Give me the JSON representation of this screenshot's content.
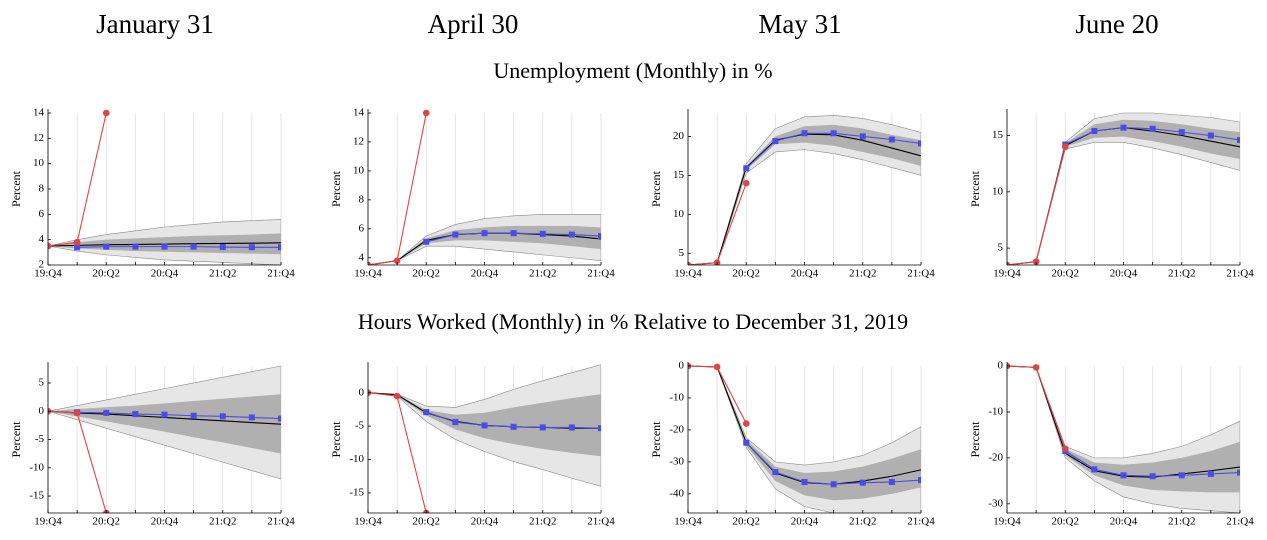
{
  "column_titles": [
    "January 31",
    "April 30",
    "May 31",
    "June 20"
  ],
  "row_titles": [
    "Unemployment (Monthly) in %",
    "Hours Worked (Monthly) in % Relative to December 31, 2019"
  ],
  "chart_data": [
    {
      "type": "line",
      "ylabel": "Percent",
      "categories": [
        "19:Q4",
        null,
        "20:Q2",
        null,
        "20:Q4",
        null,
        "21:Q2",
        null,
        "21:Q4"
      ],
      "ylim": [
        2,
        14
      ],
      "yticks": [
        2,
        4,
        6,
        8,
        10,
        12,
        14
      ],
      "grid": true,
      "bands": [
        {
          "color": "#e6e6e6",
          "low": [
            3.5,
            3.1,
            2.8,
            2.6,
            2.4,
            2.3,
            2.2,
            2.1,
            2.0
          ],
          "high": [
            3.5,
            4.0,
            4.4,
            4.7,
            5.0,
            5.2,
            5.4,
            5.5,
            5.6
          ]
        },
        {
          "color": "#b0b0b0",
          "low": [
            3.5,
            3.3,
            3.2,
            3.1,
            3.05,
            3.0,
            2.95,
            2.9,
            2.85
          ],
          "high": [
            3.5,
            3.8,
            4.0,
            4.1,
            4.2,
            4.3,
            4.35,
            4.4,
            4.5
          ]
        }
      ],
      "series": [
        {
          "color": "#000000",
          "values": [
            3.5,
            3.55,
            3.6,
            3.62,
            3.65,
            3.68,
            3.7,
            3.72,
            3.75
          ]
        },
        {
          "color": "#4b4be6",
          "marker": "square",
          "values": [
            null,
            3.4,
            3.45,
            3.45,
            3.45,
            3.45,
            3.42,
            3.4,
            3.4
          ]
        },
        {
          "color": "#e04545",
          "marker": "circle",
          "values": [
            3.5,
            3.8,
            14,
            null,
            null,
            null,
            null,
            null,
            null
          ]
        }
      ]
    },
    {
      "type": "line",
      "ylabel": "Percent",
      "categories": [
        "19:Q4",
        null,
        "20:Q2",
        null,
        "20:Q4",
        null,
        "21:Q2",
        null,
        "21:Q4"
      ],
      "ylim": [
        3.5,
        14
      ],
      "yticks": [
        4,
        6,
        8,
        10,
        12,
        14
      ],
      "grid": true,
      "bands": [
        {
          "color": "#e6e6e6",
          "low": [
            3.5,
            3.8,
            4.8,
            4.8,
            4.6,
            4.4,
            4.2,
            4.0,
            3.8
          ],
          "high": [
            3.5,
            3.8,
            5.5,
            6.3,
            6.7,
            6.9,
            7.0,
            7.0,
            7.0
          ]
        },
        {
          "color": "#b0b0b0",
          "low": [
            3.5,
            3.8,
            5.0,
            5.2,
            5.2,
            5.1,
            5.0,
            4.8,
            4.6
          ],
          "high": [
            3.5,
            3.8,
            5.35,
            5.9,
            6.1,
            6.2,
            6.2,
            6.2,
            6.1
          ]
        }
      ],
      "series": [
        {
          "color": "#000000",
          "values": [
            3.5,
            3.8,
            5.2,
            5.6,
            5.7,
            5.7,
            5.6,
            5.5,
            5.3
          ]
        },
        {
          "color": "#4b4be6",
          "marker": "square",
          "values": [
            null,
            null,
            5.1,
            5.6,
            5.7,
            5.7,
            5.65,
            5.6,
            5.5
          ]
        },
        {
          "color": "#e04545",
          "marker": "circle",
          "values": [
            3.5,
            3.8,
            14,
            null,
            null,
            null,
            null,
            null,
            null
          ]
        }
      ]
    },
    {
      "type": "line",
      "ylabel": "Percent",
      "categories": [
        "19:Q4",
        null,
        "20:Q2",
        null,
        "20:Q4",
        null,
        "21:Q2",
        null,
        "21:Q4"
      ],
      "ylim": [
        3.5,
        23
      ],
      "yticks": [
        5,
        10,
        15,
        20
      ],
      "grid": true,
      "bands": [
        {
          "color": "#e6e6e6",
          "low": [
            3.5,
            3.8,
            15.3,
            18,
            18.3,
            17.8,
            17,
            16,
            15
          ],
          "high": [
            3.5,
            3.8,
            16.5,
            21,
            22.5,
            22.7,
            22.3,
            21.5,
            20.5
          ]
        },
        {
          "color": "#b0b0b0",
          "low": [
            3.5,
            3.8,
            15.7,
            19,
            19.2,
            18.8,
            18,
            17.2,
            16.2
          ],
          "high": [
            3.5,
            3.8,
            16.2,
            20,
            21.3,
            21.5,
            21,
            20.2,
            19.5
          ]
        }
      ],
      "series": [
        {
          "color": "#000000",
          "values": [
            3.5,
            3.8,
            16,
            19.5,
            20.3,
            20.2,
            19.5,
            18.5,
            17.5
          ]
        },
        {
          "color": "#4b4be6",
          "marker": "square",
          "values": [
            null,
            null,
            15.9,
            19.4,
            20.4,
            20.4,
            20.0,
            19.6,
            19.1
          ]
        },
        {
          "color": "#e04545",
          "marker": "circle",
          "values": [
            3.5,
            3.8,
            14,
            null,
            null,
            null,
            null,
            null,
            null
          ]
        }
      ]
    },
    {
      "type": "line",
      "ylabel": "Percent",
      "categories": [
        "19:Q4",
        null,
        "20:Q2",
        null,
        "20:Q4",
        null,
        "21:Q2",
        null,
        "21:Q4"
      ],
      "ylim": [
        3.5,
        17
      ],
      "yticks": [
        5,
        10,
        15
      ],
      "grid": true,
      "bands": [
        {
          "color": "#e6e6e6",
          "low": [
            3.5,
            3.8,
            13.8,
            14.4,
            14.4,
            13.9,
            13.3,
            12.6,
            11.9
          ],
          "high": [
            3.5,
            3.8,
            14.4,
            16.5,
            17,
            17,
            16.8,
            16.6,
            16.2
          ]
        },
        {
          "color": "#b0b0b0",
          "low": [
            3.5,
            3.8,
            14,
            14.8,
            14.9,
            14.5,
            14,
            13.4,
            12.9
          ],
          "high": [
            3.5,
            3.8,
            14.3,
            16,
            16.4,
            16.3,
            16,
            15.6,
            15.3
          ]
        }
      ],
      "series": [
        {
          "color": "#000000",
          "values": [
            3.5,
            3.8,
            14.1,
            15.4,
            15.7,
            15.4,
            15.0,
            14.5,
            14.0
          ]
        },
        {
          "color": "#4b4be6",
          "marker": "square",
          "values": [
            null,
            null,
            14.2,
            15.4,
            15.7,
            15.6,
            15.3,
            15.0,
            14.6
          ]
        },
        {
          "color": "#e04545",
          "marker": "circle",
          "values": [
            3.5,
            3.8,
            14,
            null,
            null,
            null,
            null,
            null,
            null
          ]
        }
      ]
    },
    {
      "type": "line",
      "ylabel": "Percent",
      "categories": [
        "19:Q4",
        null,
        "20:Q2",
        null,
        "20:Q4",
        null,
        "21:Q2",
        null,
        "21:Q4"
      ],
      "ylim": [
        -18,
        8
      ],
      "yticks": [
        -15,
        -10,
        -5,
        0,
        5
      ],
      "grid": true,
      "bands": [
        {
          "color": "#e6e6e6",
          "low": [
            0,
            -1.5,
            -3,
            -4.5,
            -6,
            -7.5,
            -9,
            -10.5,
            -12
          ],
          "high": [
            0,
            1,
            2,
            3,
            4,
            5,
            6,
            7,
            8
          ]
        },
        {
          "color": "#b0b0b0",
          "low": [
            0,
            -0.9,
            -1.8,
            -2.7,
            -3.6,
            -4.6,
            -5.5,
            -6.5,
            -7.5
          ],
          "high": [
            0,
            0.4,
            0.7,
            1,
            1.4,
            1.8,
            2.2,
            2.6,
            3
          ]
        }
      ],
      "series": [
        {
          "color": "#000000",
          "values": [
            0,
            -0.3,
            -0.5,
            -0.8,
            -1.1,
            -1.4,
            -1.7,
            -2.0,
            -2.3
          ]
        },
        {
          "color": "#4b4be6",
          "marker": "square",
          "values": [
            null,
            -0.2,
            -0.3,
            -0.5,
            -0.6,
            -0.8,
            -0.9,
            -1.1,
            -1.3
          ]
        },
        {
          "color": "#e04545",
          "marker": "circle",
          "values": [
            0,
            -0.3,
            -18,
            null,
            null,
            null,
            null,
            null,
            null
          ]
        }
      ]
    },
    {
      "type": "line",
      "ylabel": "Percent",
      "categories": [
        "19:Q4",
        null,
        "20:Q2",
        null,
        "20:Q4",
        null,
        "21:Q2",
        null,
        "21:Q4"
      ],
      "ylim": [
        -18,
        4
      ],
      "yticks": [
        -15,
        -10,
        -5,
        0
      ],
      "grid": true,
      "bands": [
        {
          "color": "#e6e6e6",
          "low": [
            0,
            -0.5,
            -4.3,
            -7,
            -8.8,
            -10.3,
            -11.5,
            -12.8,
            -14
          ],
          "high": [
            0,
            -0.2,
            -2,
            -2.2,
            -1,
            0.5,
            1.8,
            3,
            4.2
          ]
        },
        {
          "color": "#b0b0b0",
          "low": [
            0,
            -0.5,
            -3.4,
            -5.5,
            -6.8,
            -7.7,
            -8.4,
            -9,
            -9.5
          ],
          "high": [
            0,
            -0.2,
            -2.6,
            -3.3,
            -3,
            -2.2,
            -1.5,
            -0.8,
            -0.2
          ]
        }
      ],
      "series": [
        {
          "color": "#000000",
          "values": [
            0,
            -0.3,
            -3,
            -4.3,
            -4.9,
            -5.1,
            -5.2,
            -5.3,
            -5.3
          ]
        },
        {
          "color": "#4b4be6",
          "marker": "square",
          "values": [
            null,
            null,
            -2.9,
            -4.4,
            -4.9,
            -5.1,
            -5.2,
            -5.2,
            -5.3
          ]
        },
        {
          "color": "#e04545",
          "marker": "circle",
          "values": [
            0,
            -0.5,
            -18,
            null,
            null,
            null,
            null,
            null,
            null
          ]
        }
      ]
    },
    {
      "type": "line",
      "ylabel": "Percent",
      "categories": [
        "19:Q4",
        null,
        "20:Q2",
        null,
        "20:Q4",
        null,
        "21:Q2",
        null,
        "21:Q4"
      ],
      "ylim": [
        -46,
        0
      ],
      "yticks": [
        -40,
        -30,
        -20,
        -10,
        0
      ],
      "grid": true,
      "bands": [
        {
          "color": "#e6e6e6",
          "low": [
            0,
            -0.3,
            -25.5,
            -38.5,
            -44,
            -46,
            -47,
            -48,
            -48
          ],
          "high": [
            0,
            -0.3,
            -22.5,
            -30,
            -31,
            -30,
            -28,
            -24,
            -19
          ]
        },
        {
          "color": "#b0b0b0",
          "low": [
            0,
            -0.3,
            -25,
            -36,
            -40.5,
            -42,
            -41.5,
            -40,
            -38
          ],
          "high": [
            0,
            -0.3,
            -23,
            -31.5,
            -33.5,
            -33,
            -31.5,
            -29,
            -26
          ]
        }
      ],
      "series": [
        {
          "color": "#000000",
          "values": [
            0,
            -0.3,
            -24,
            -33.5,
            -36.5,
            -37,
            -36,
            -34.5,
            -32.5
          ]
        },
        {
          "color": "#4b4be6",
          "marker": "square",
          "values": [
            null,
            null,
            -24,
            -33.2,
            -36.3,
            -37,
            -36.5,
            -36.3,
            -35.7
          ]
        },
        {
          "color": "#e04545",
          "marker": "circle",
          "values": [
            0,
            -0.3,
            -18,
            null,
            null,
            null,
            null,
            null,
            null
          ]
        }
      ]
    },
    {
      "type": "line",
      "ylabel": "Percent",
      "categories": [
        "19:Q4",
        null,
        "20:Q2",
        null,
        "20:Q4",
        null,
        "21:Q2",
        null,
        "21:Q4"
      ],
      "ylim": [
        -32,
        0
      ],
      "yticks": [
        -30,
        -20,
        -10,
        0
      ],
      "grid": true,
      "bands": [
        {
          "color": "#e6e6e6",
          "low": [
            0,
            -0.3,
            -20,
            -25,
            -28.5,
            -30,
            -31,
            -31.5,
            -32
          ],
          "high": [
            0,
            -0.3,
            -17.5,
            -20,
            -20,
            -19,
            -17.5,
            -15,
            -12
          ]
        },
        {
          "color": "#b0b0b0",
          "low": [
            0,
            -0.3,
            -19.5,
            -23.8,
            -26,
            -27,
            -27.3,
            -27.5,
            -27.5
          ],
          "high": [
            0,
            -0.3,
            -18,
            -21,
            -21.5,
            -21,
            -20,
            -18.5,
            -16.5
          ]
        }
      ],
      "series": [
        {
          "color": "#000000",
          "values": [
            0,
            -0.3,
            -19,
            -22.8,
            -24,
            -24.2,
            -23.5,
            -22.8,
            -22
          ]
        },
        {
          "color": "#4b4be6",
          "marker": "square",
          "values": [
            null,
            null,
            -18.5,
            -22.5,
            -23.8,
            -24,
            -23.8,
            -23.5,
            -23.2
          ]
        },
        {
          "color": "#e04545",
          "marker": "circle",
          "values": [
            0,
            -0.3,
            -18,
            null,
            null,
            null,
            null,
            null,
            null
          ]
        }
      ]
    }
  ]
}
